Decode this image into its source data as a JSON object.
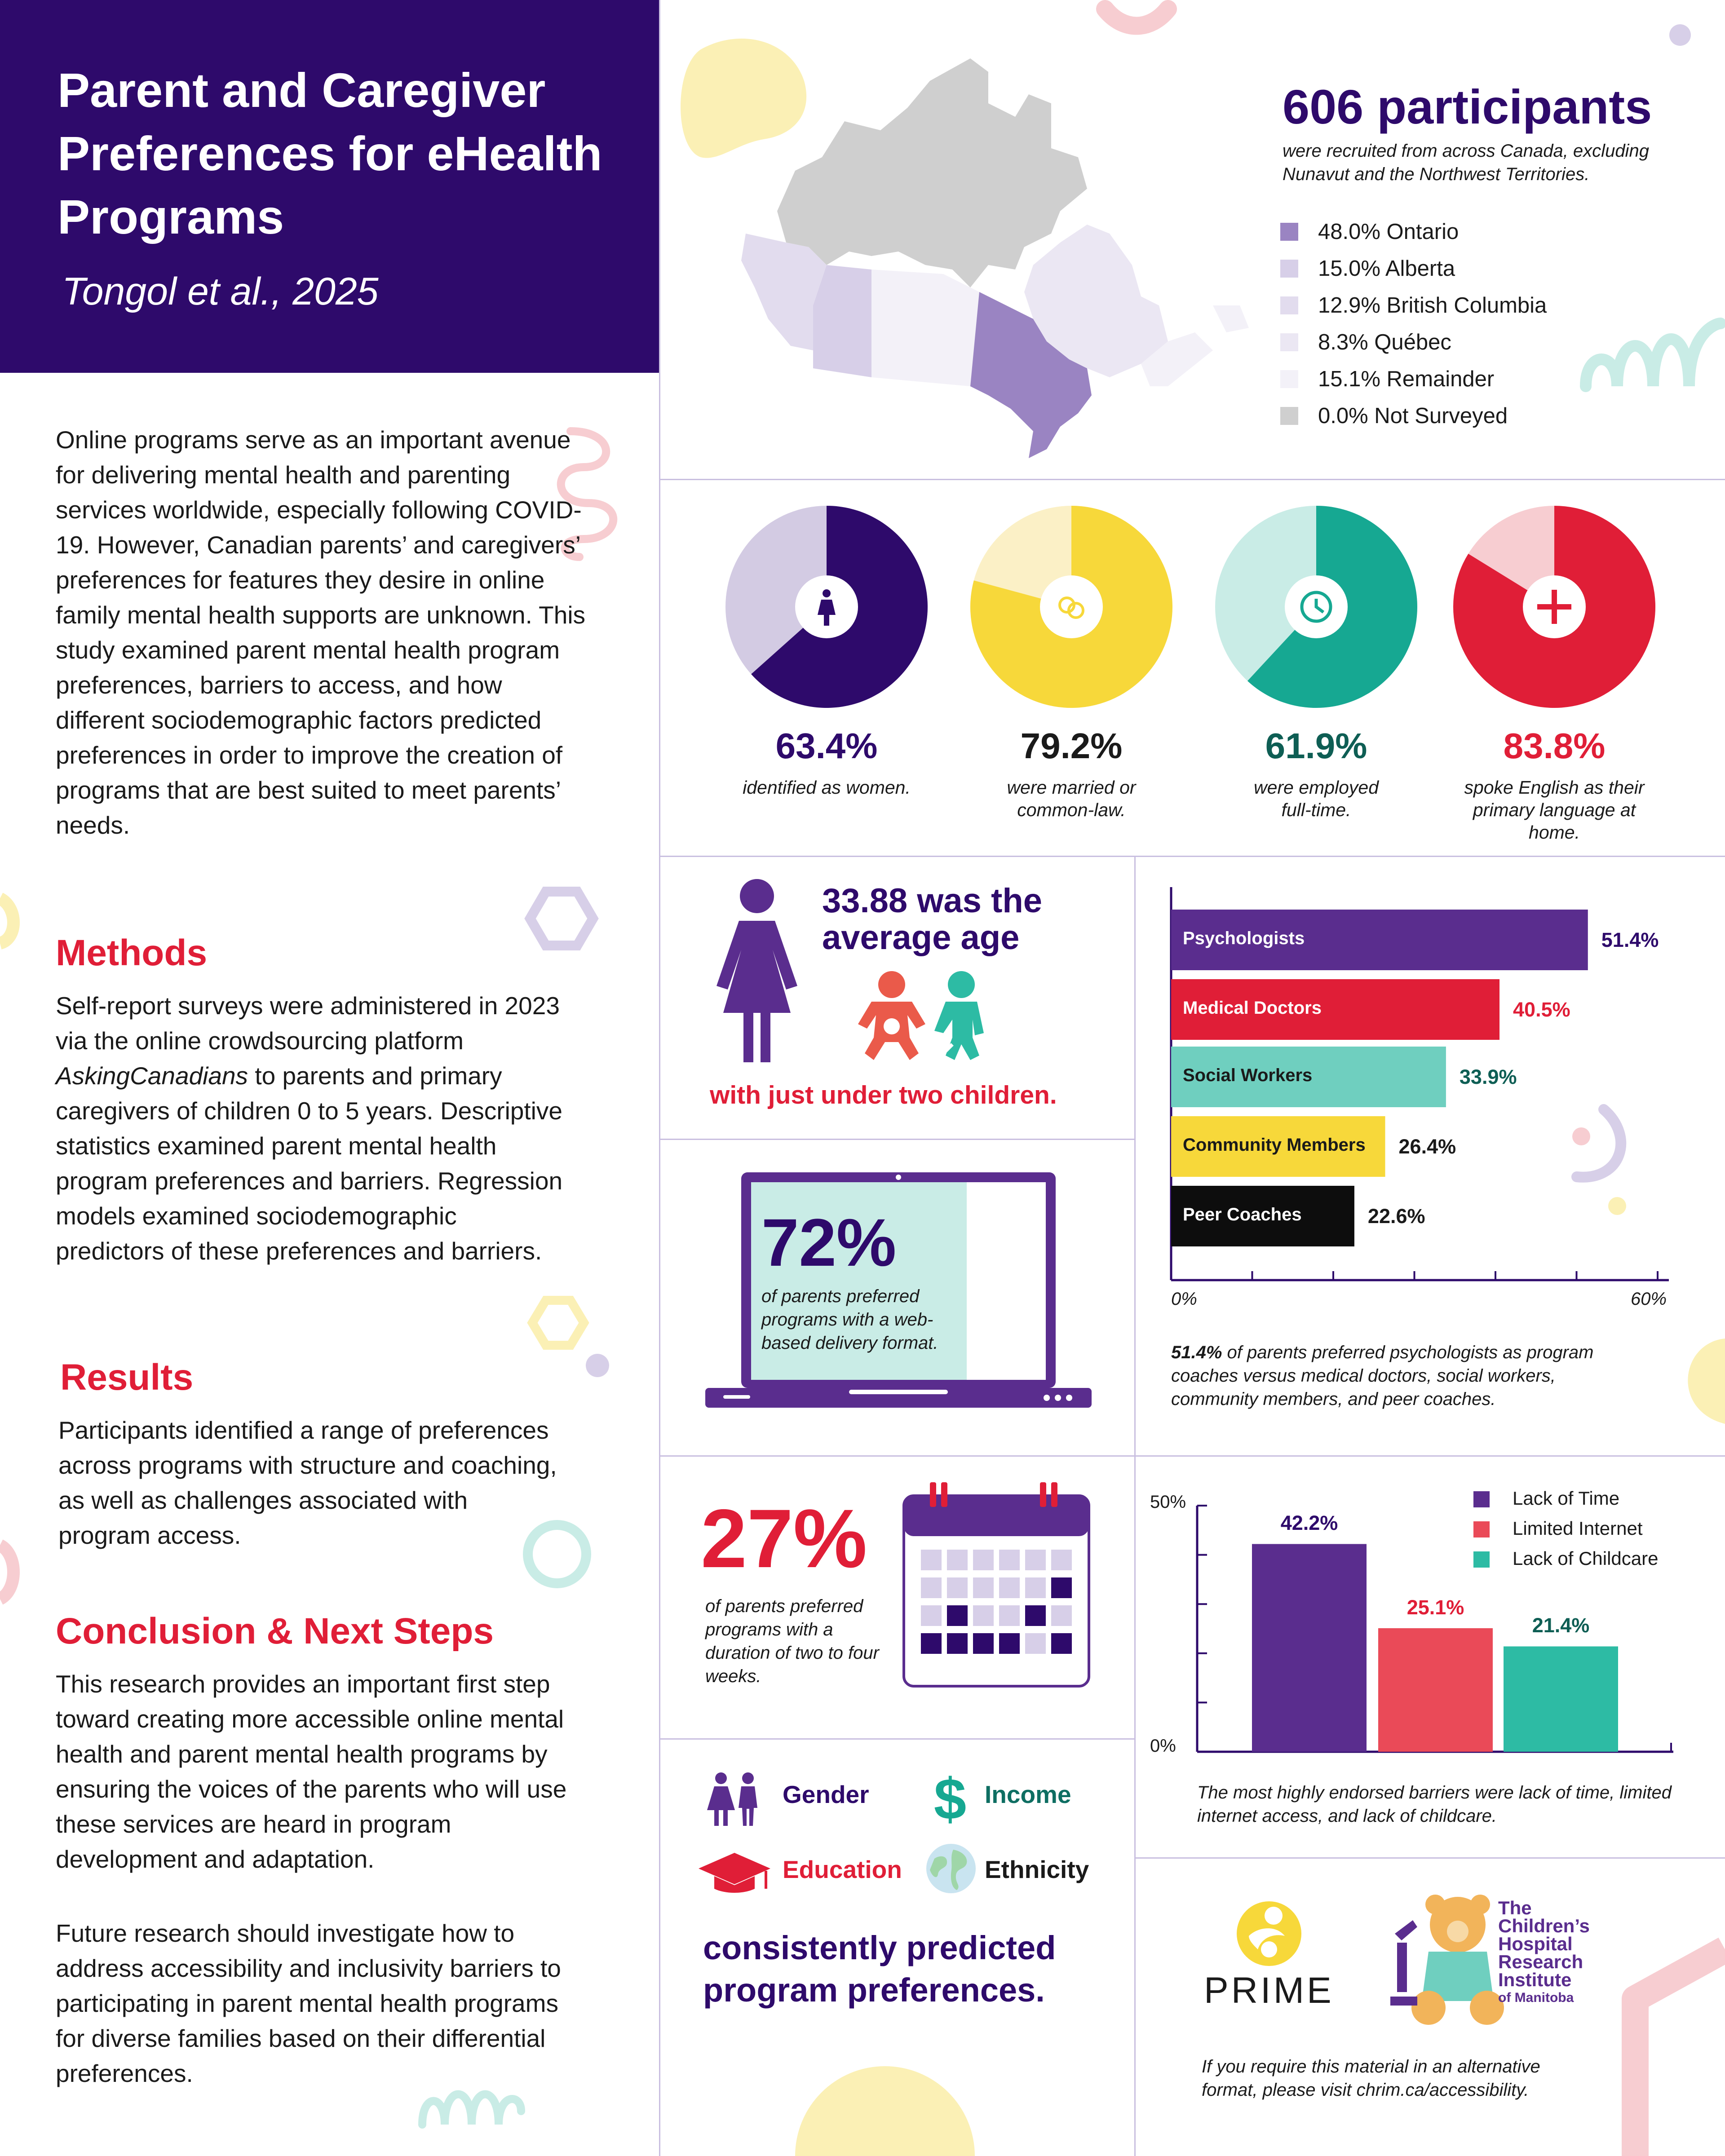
{
  "header": {
    "title": "Parent and Caregiver Preferences for eHealth Programs",
    "authors": "Tongol et al., 2025"
  },
  "intro": "Online programs serve as an important avenue for delivering mental health and parenting services worldwide, especially following COVID-19. However, Canadian parents’ and caregivers’ preferences for features they desire in online family mental health supports are unknown. This study examined parent mental health program preferences, barriers to access, and how different sociodemographic factors predicted preferences in order to improve the creation of programs that are best suited to meet parents’ needs.",
  "methods": {
    "heading": "Methods",
    "text_before": "Self-report surveys were administered in 2023 via the online crowdsourcing platform ",
    "platform": "AskingCanadians",
    "text_after": " to parents and primary caregivers of children 0 to 5 years. Descriptive statistics examined parent mental health program preferences and barriers. Regression models examined sociodemographic predictors of these preferences and barriers."
  },
  "results": {
    "heading": "Results",
    "text": "Participants identified a range of preferences across programs with structure and coaching, as well as challenges associated with program access."
  },
  "conclusion": {
    "heading": "Conclusion & Next Steps",
    "text1": "This research provides an important first step toward creating more accessible online mental health and parent mental health programs by ensuring the voices of the parents who will use these services are heard in program development and adaptation.",
    "text2": "Future research should investigate how to address accessibility and inclusivity barriers to participating in parent mental health programs for diverse families based on their differential preferences."
  },
  "participants": {
    "headline": "606 participants",
    "sub": "were recruited from across Canada, excluding Nunavut and the Northwest Territories.",
    "legend": [
      {
        "label": "48.0% Ontario",
        "color": "#9a84c2"
      },
      {
        "label": "15.0% Alberta",
        "color": "#d7cfe8"
      },
      {
        "label": "12.9% British Columbia",
        "color": "#e2dcee"
      },
      {
        "label": "8.3% Québec",
        "color": "#ebe7f3"
      },
      {
        "label": "15.1% Remainder",
        "color": "#f3f1f8"
      },
      {
        "label": "0.0% Not Surveyed",
        "color": "#cfcfcf"
      }
    ]
  },
  "donuts": [
    {
      "value": "63.4%",
      "fraction": 0.634,
      "caption": "identified as women.",
      "main": "#2e0a6b",
      "rest": "#d3cbe3",
      "text": "#2e0a6b",
      "icon": "woman-icon"
    },
    {
      "value": "79.2%",
      "fraction": 0.792,
      "caption": "were married or common-law.",
      "main": "#f7d83a",
      "rest": "#fbf0c6",
      "text": "#1a1a1a",
      "icon": "rings-icon"
    },
    {
      "value": "61.9%",
      "fraction": 0.619,
      "caption": "were employed full-time.",
      "main": "#16a892",
      "rest": "#c9ece6",
      "text": "#0e5e54",
      "icon": "clock-icon"
    },
    {
      "value": "83.8%",
      "fraction": 0.838,
      "caption": "spoke English as their primary language at home.",
      "main": "#e01e37",
      "rest": "#f7cdd1",
      "text": "#e01e37",
      "icon": "plus-icon"
    }
  ],
  "age": {
    "headline": "33.88 was the average age",
    "sub": "with just under two children."
  },
  "web": {
    "value": "72%",
    "caption": "of parents preferred programs with a web-based delivery format."
  },
  "duration": {
    "value": "27%",
    "caption": "of parents preferred programs with a duration of two to four weeks."
  },
  "coaches_chart": {
    "chart_data": {
      "type": "bar",
      "orientation": "horizontal",
      "categories": [
        "Psychologists",
        "Medical Doctors",
        "Social Workers",
        "Community Members",
        "Peer Coaches"
      ],
      "values": [
        51.4,
        40.5,
        33.9,
        26.4,
        22.6
      ],
      "value_labels": [
        "51.4%",
        "40.5%",
        "33.9%",
        "26.4%",
        "22.6%"
      ],
      "colors": [
        "#5a2d8e",
        "#e01e37",
        "#6fcfbf",
        "#f7d83a",
        "#0d0d0d"
      ],
      "label_colors": [
        "#ffffff",
        "#ffffff",
        "#1a1a1a",
        "#1a1a1a",
        "#ffffff"
      ],
      "value_colors": [
        "#2e0a6b",
        "#e01e37",
        "#0e5e54",
        "#1a1a1a",
        "#1a1a1a"
      ],
      "xlim": [
        0,
        60
      ],
      "tick_labels": [
        "0%",
        "60%"
      ]
    },
    "note_bold": "51.4%",
    "note": " of parents preferred psychologists as program coaches versus medical doctors, social workers, community members, and peer coaches."
  },
  "barriers_chart": {
    "chart_data": {
      "type": "bar",
      "categories": [
        "Lack of Time",
        "Limited Internet",
        "Lack of Childcare"
      ],
      "values": [
        42.2,
        25.1,
        21.4
      ],
      "value_labels": [
        "42.2%",
        "25.1%",
        "21.4%"
      ],
      "colors": [
        "#5a2d8e",
        "#ea4a58",
        "#2dbba4"
      ],
      "value_colors": [
        "#2e0a6b",
        "#e01e37",
        "#0e5e54"
      ],
      "ylim": [
        0,
        50
      ],
      "tick_labels": [
        "0%",
        "50%"
      ],
      "legend": "top-right"
    },
    "note": "The most highly endorsed barriers were lack of time, limited internet access, and lack of childcare."
  },
  "predictors": {
    "items": [
      {
        "label": "Gender",
        "color": "#2e0a6b",
        "icon": "gender-icon"
      },
      {
        "label": "Income",
        "color": "#0e6e62",
        "icon": "dollar-icon"
      },
      {
        "label": "Education",
        "color": "#e01e37",
        "icon": "graduation-cap-icon"
      },
      {
        "label": "Ethnicity",
        "color": "#1a1a1a",
        "icon": "globe-icon"
      }
    ],
    "conclusion": "consistently predicted program preferences."
  },
  "logos": {
    "prime": "PRIME",
    "chrim_lines": [
      "The",
      "Children’s",
      "Hospital",
      "Research",
      "Institute",
      "of Manitoba"
    ]
  },
  "accessibility": "If you require this material in an alternative format, please visit chrim.ca/accessibility."
}
